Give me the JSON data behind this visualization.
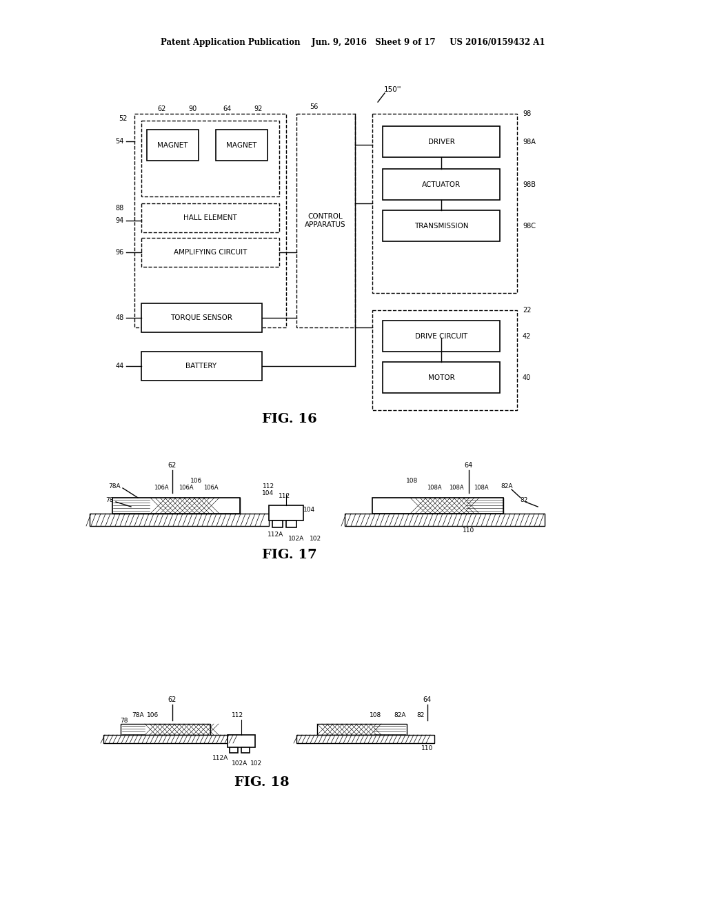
{
  "bg_color": "#ffffff",
  "header_text": "Patent Application Publication    Jun. 9, 2016   Sheet 9 of 17     US 2016/0159432 A1",
  "fig16_label": "FIG. 16",
  "fig17_label": "FIG. 17",
  "fig18_label": "FIG. 18"
}
